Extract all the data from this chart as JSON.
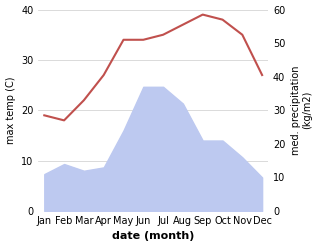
{
  "months": [
    "Jan",
    "Feb",
    "Mar",
    "Apr",
    "May",
    "Jun",
    "Jul",
    "Aug",
    "Sep",
    "Oct",
    "Nov",
    "Dec"
  ],
  "temp": [
    19,
    18,
    22,
    27,
    34,
    34,
    35,
    37,
    39,
    38,
    35,
    27
  ],
  "precip": [
    11,
    14,
    12,
    13,
    24,
    37,
    37,
    32,
    21,
    21,
    16,
    10
  ],
  "temp_color": "#c0504d",
  "precip_fill_color": "#bdc9f0",
  "ylim_temp": [
    0,
    40
  ],
  "ylim_precip": [
    0,
    60
  ],
  "temp_lw": 1.5,
  "xlabel": "date (month)",
  "ylabel_left": "max temp (C)",
  "ylabel_right": "med. precipitation\n(kg/m2)",
  "xlabel_fontsize": 8,
  "ylabel_fontsize": 7,
  "tick_fontsize": 7,
  "bg_color": "#ffffff",
  "grid_color": "#cccccc",
  "left_yticks": [
    0,
    10,
    20,
    30,
    40
  ],
  "right_yticks": [
    0,
    10,
    20,
    30,
    40,
    50,
    60
  ]
}
